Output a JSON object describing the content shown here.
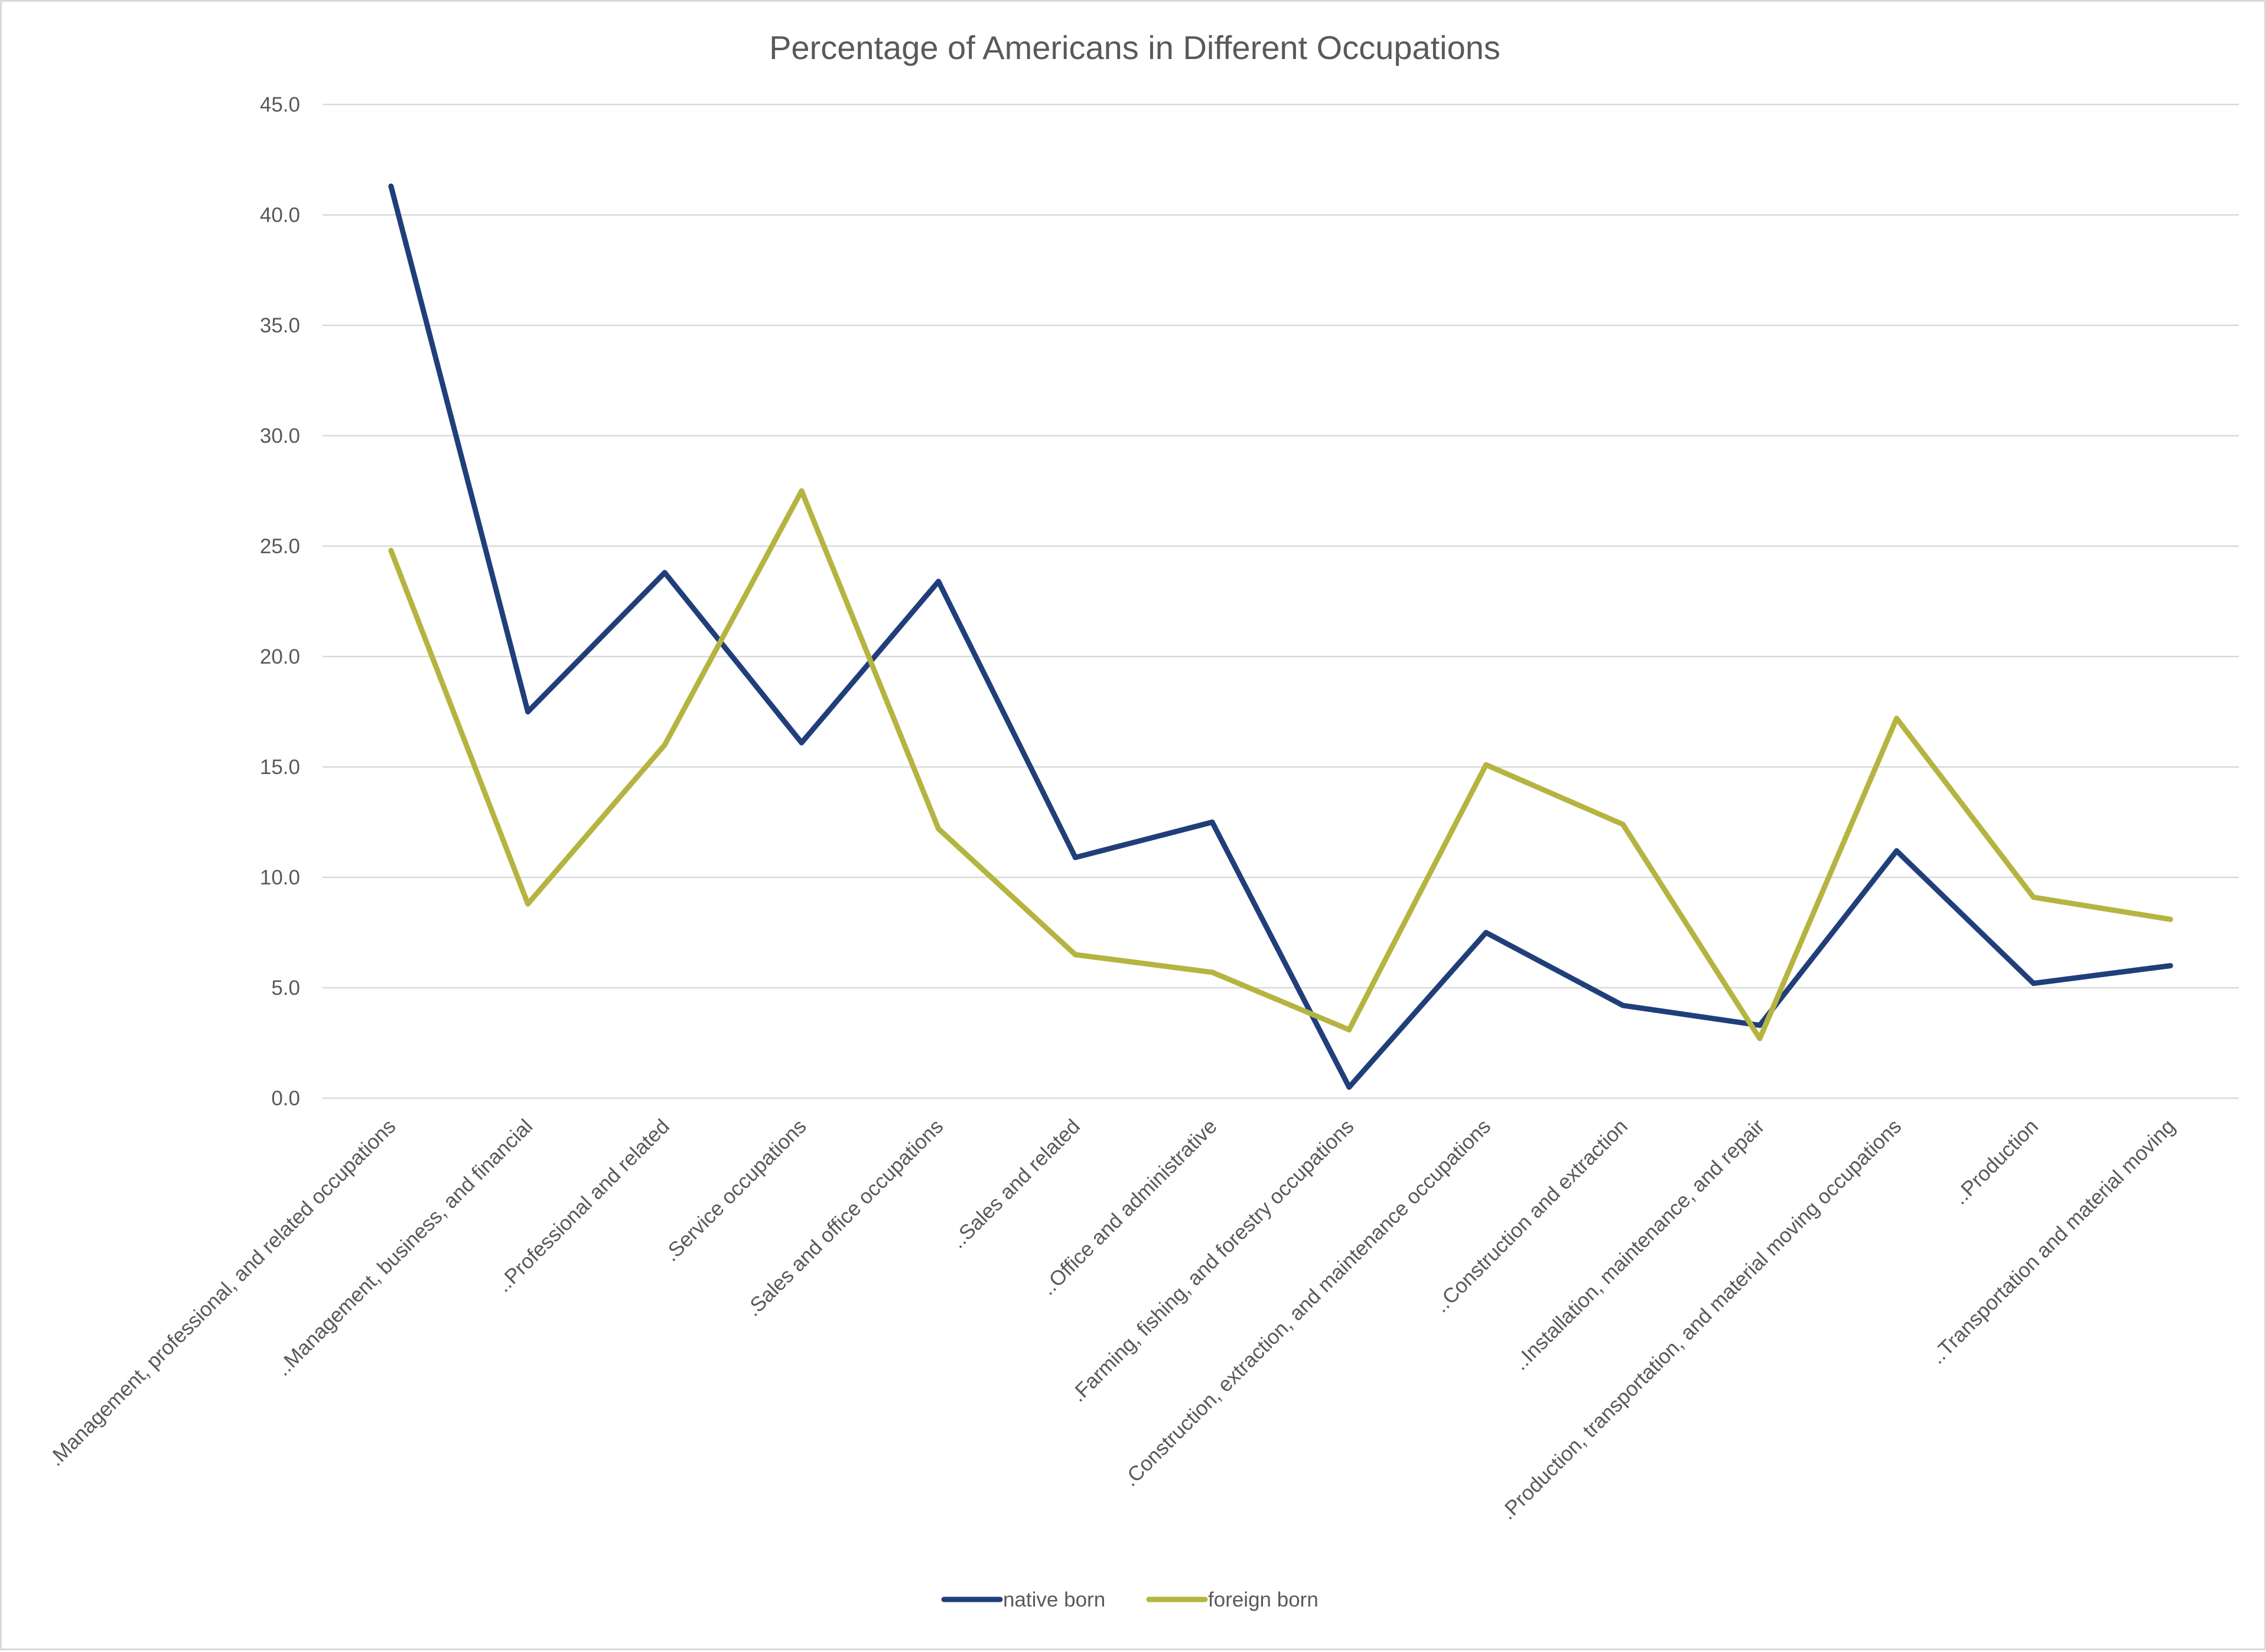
{
  "chart_data": {
    "type": "line",
    "title": "Percentage of Americans in Different Occupations",
    "xlabel": "",
    "ylabel": "",
    "ylim": [
      0,
      45
    ],
    "y_ticks": [
      "0.0",
      "5.0",
      "10.0",
      "15.0",
      "20.0",
      "25.0",
      "30.0",
      "35.0",
      "40.0",
      "45.0"
    ],
    "grid": true,
    "legend_position": "bottom",
    "categories": [
      ".Management, professional, and related occupations",
      "..Management, business, and financial",
      "..Professional and related",
      ".Service occupations",
      ".Sales and office occupations",
      "..Sales and related",
      "..Office and administrative",
      ".Farming, fishing, and forestry occupations",
      ".Construction, extraction, and maintenance occupations",
      "..Construction and extraction",
      "..Installation, maintenance, and repair",
      ".Production, transportation, and material moving occupations",
      "..Production",
      "..Transportation and material moving"
    ],
    "series": [
      {
        "name": "native born",
        "color": "#203f7a",
        "values": [
          41.3,
          17.5,
          23.8,
          16.1,
          23.4,
          10.9,
          12.5,
          0.5,
          7.5,
          4.2,
          3.3,
          11.2,
          5.2,
          6.0
        ]
      },
      {
        "name": "foreign born",
        "color": "#b5b441",
        "values": [
          24.8,
          8.8,
          16.0,
          27.5,
          12.2,
          6.5,
          5.7,
          3.1,
          15.1,
          12.4,
          2.7,
          17.2,
          9.1,
          8.1
        ]
      }
    ]
  }
}
